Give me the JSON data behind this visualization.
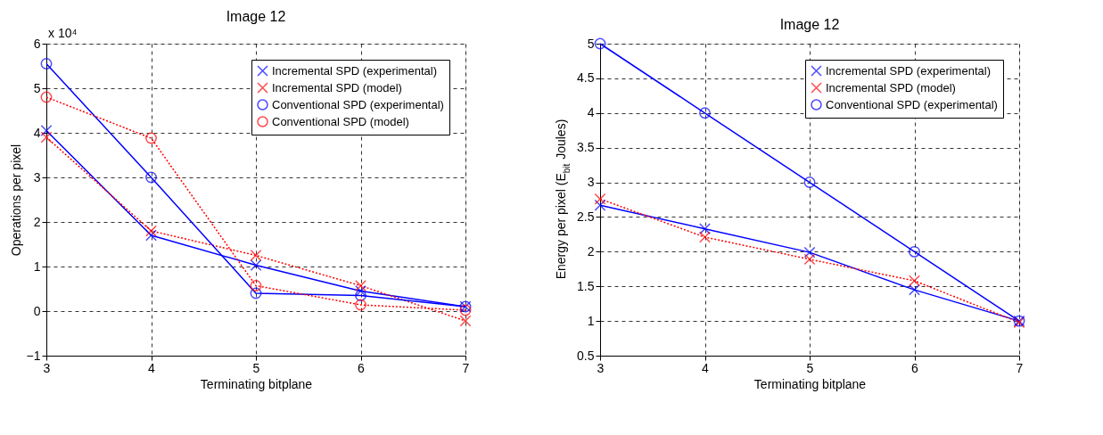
{
  "chart_data": [
    {
      "type": "line",
      "title": "Image 12",
      "xlabel": "Terminating bitplane",
      "ylabel": "Operations per pixel",
      "annotations": [
        "x 10⁴"
      ],
      "x": [
        3,
        4,
        5,
        6,
        7
      ],
      "xlim": [
        3,
        7
      ],
      "xticks": [
        3,
        4,
        5,
        6,
        7
      ],
      "ylim": [
        -1,
        6
      ],
      "yticks": [
        -1,
        0,
        1,
        2,
        3,
        4,
        5,
        6
      ],
      "grid": true,
      "legend": "top right",
      "series": [
        {
          "name": "Incremental SPD (experimental)",
          "color": "#0000ff",
          "marker": "cross",
          "line_style": "solid",
          "values": [
            4.05,
            1.7,
            1.03,
            0.45,
            0.1
          ]
        },
        {
          "name": "Incremental SPD (model)",
          "color": "#ff0000",
          "marker": "cross",
          "line_style": "dotted",
          "values": [
            3.9,
            1.8,
            1.25,
            0.57,
            -0.22
          ]
        },
        {
          "name": "Conventional SPD (experimental)",
          "color": "#0000ff",
          "marker": "circle",
          "line_style": "solid",
          "values": [
            5.55,
            3.0,
            0.4,
            0.35,
            0.1
          ]
        },
        {
          "name": "Conventional SPD (model)",
          "color": "#ff0000",
          "marker": "circle",
          "line_style": "dotted",
          "values": [
            4.8,
            3.88,
            0.57,
            0.14,
            0.02
          ]
        }
      ]
    },
    {
      "type": "line",
      "title": "Image 12",
      "xlabel": "Terminating bitplane",
      "ylabel": "Energy per pixel (E$_{bit}$ Joules)",
      "x": [
        3,
        4,
        5,
        6,
        7
      ],
      "xlim": [
        3,
        7
      ],
      "xticks": [
        3,
        4,
        5,
        6,
        7
      ],
      "ylim": [
        0.5,
        5
      ],
      "yticks": [
        0.5,
        1,
        1.5,
        2,
        2.5,
        3,
        3.5,
        4,
        4.5,
        5
      ],
      "grid": true,
      "legend": "top right",
      "series": [
        {
          "name": "Incremental SPD (experimental)",
          "color": "#0000ff",
          "marker": "cross",
          "line_style": "solid",
          "values": [
            2.67,
            2.33,
            1.99,
            1.45,
            1.0
          ]
        },
        {
          "name": "Incremental SPD (model)",
          "color": "#ff0000",
          "marker": "cross",
          "line_style": "dotted",
          "values": [
            2.76,
            2.21,
            1.89,
            1.58,
            0.98
          ]
        },
        {
          "name": "Conventional SPD (experimental)",
          "color": "#0000ff",
          "marker": "circle",
          "line_style": "solid",
          "values": [
            5,
            4,
            3,
            2,
            1
          ]
        }
      ]
    }
  ]
}
